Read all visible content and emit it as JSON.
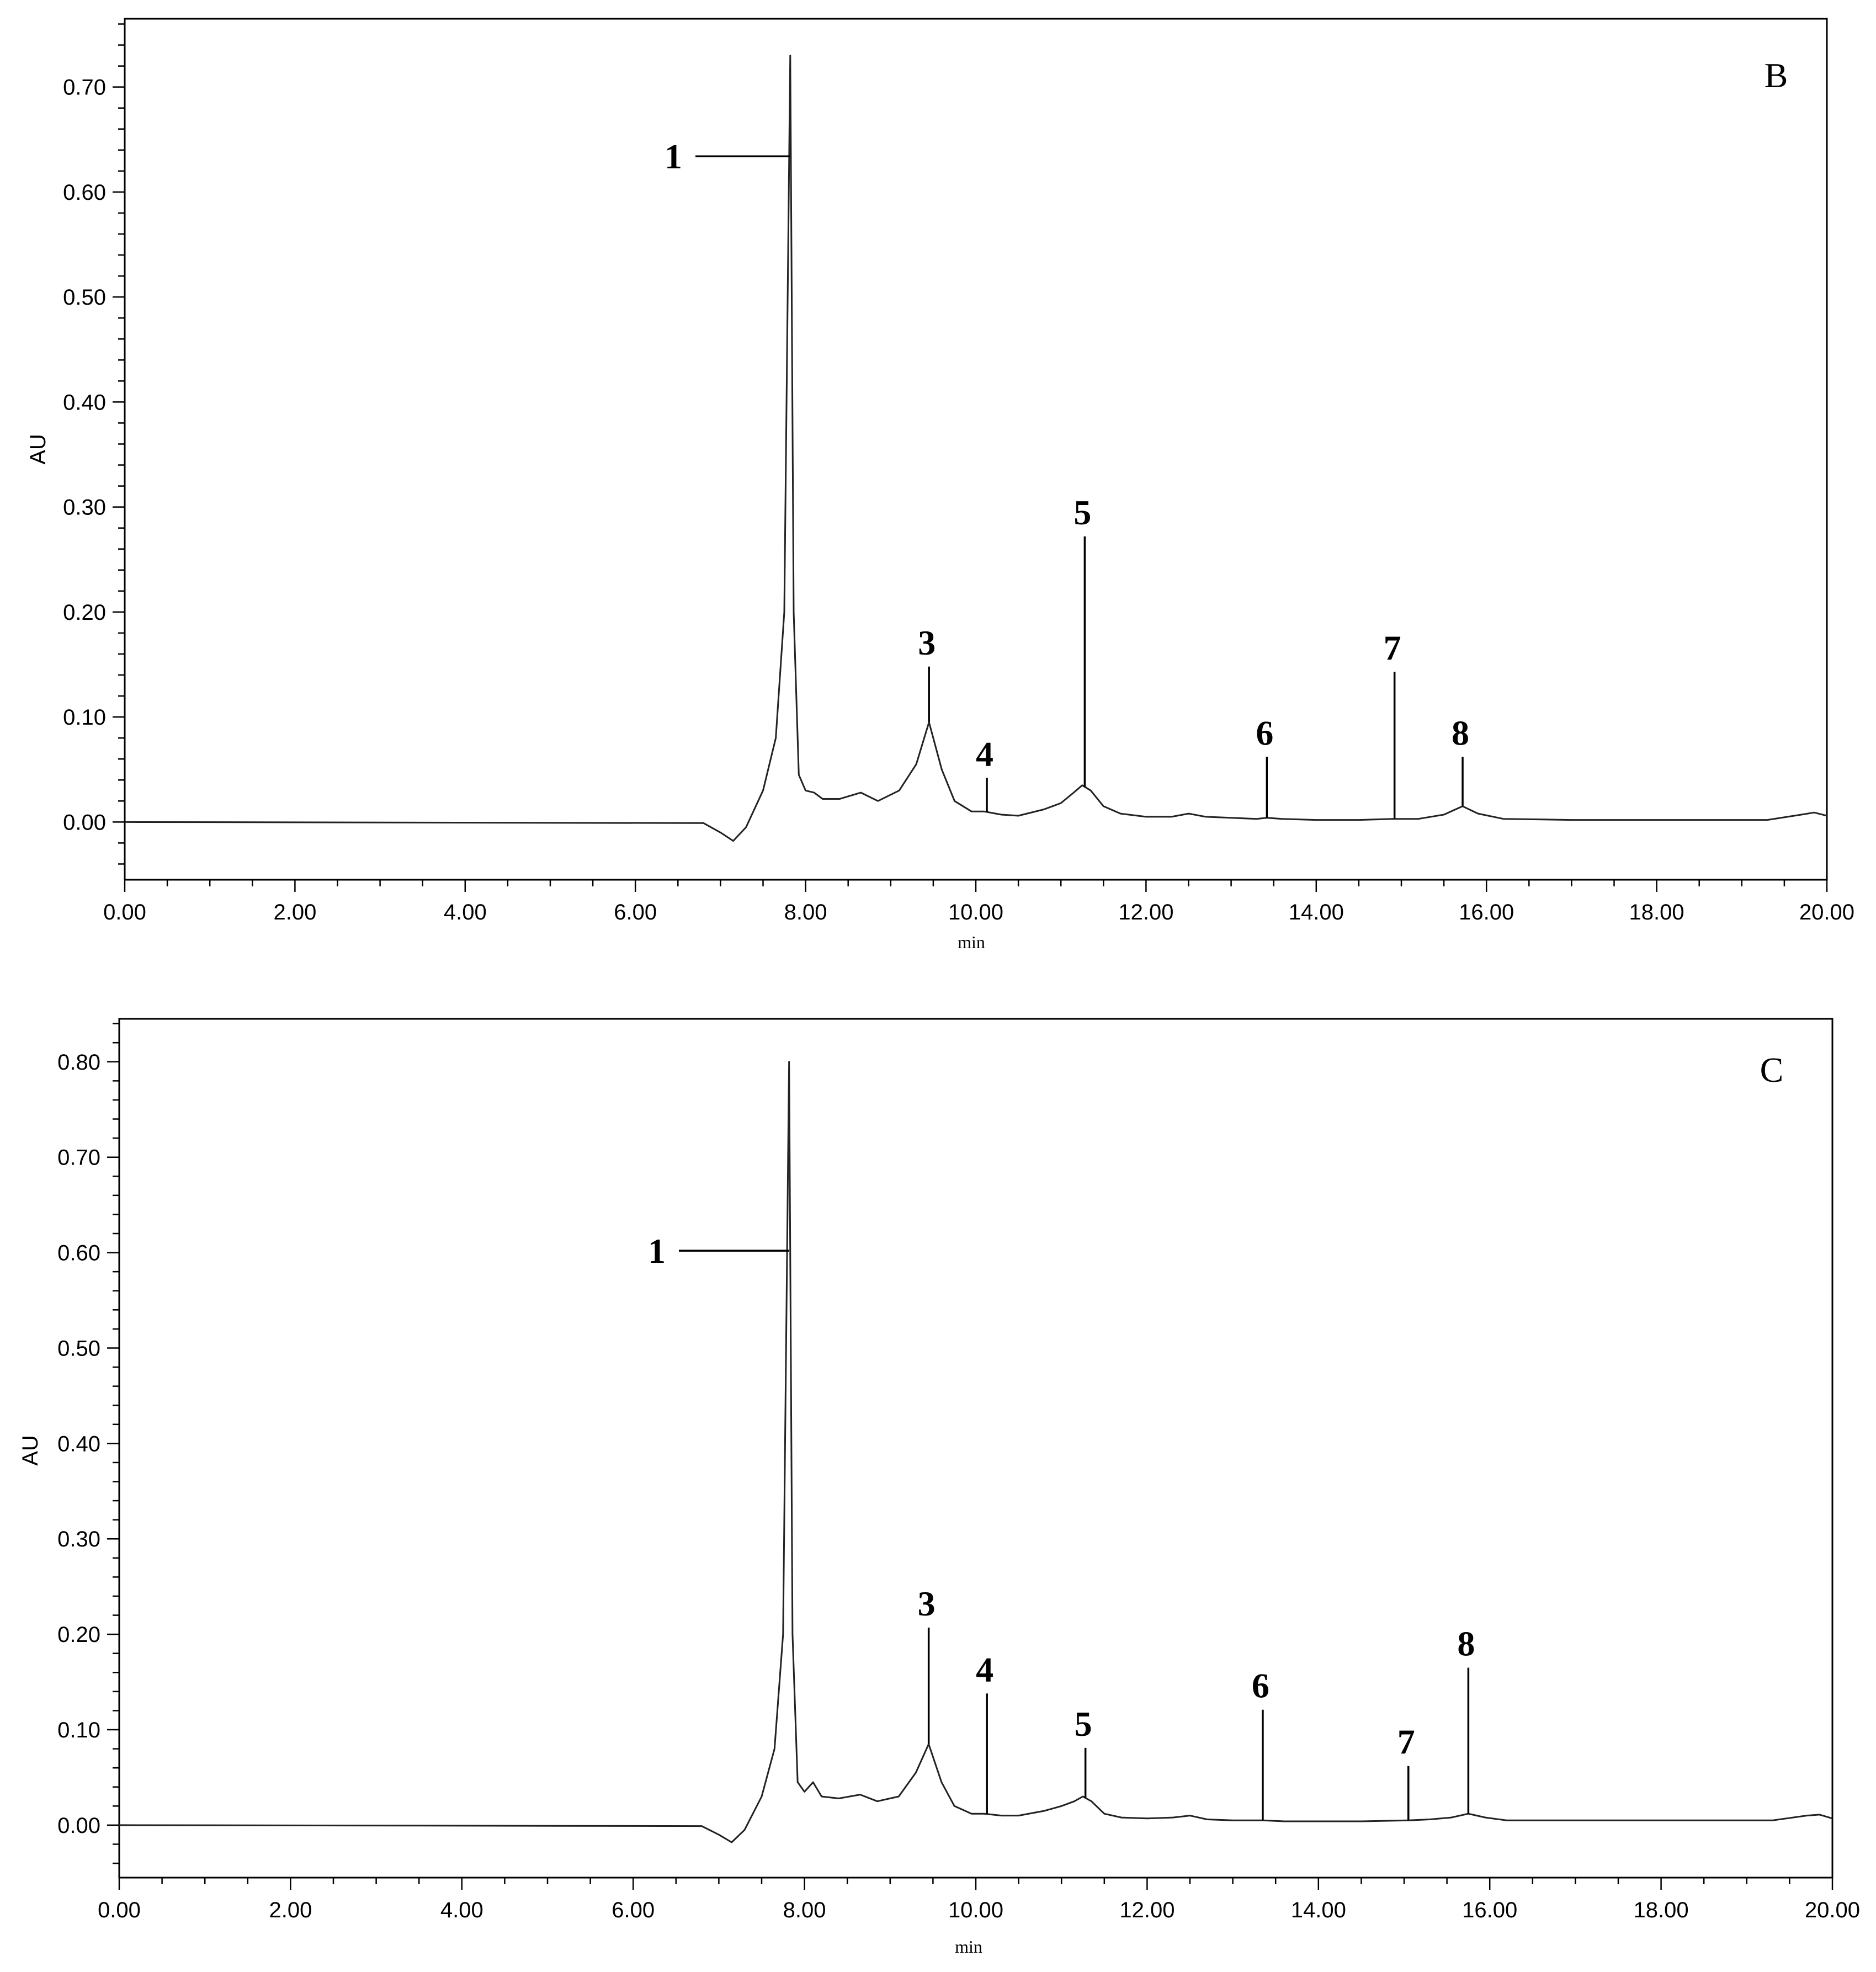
{
  "chart_data": [
    {
      "type": "line",
      "panel": "B",
      "xlabel": "min",
      "ylabel": "AU",
      "xlim": [
        0,
        20
      ],
      "ylim": [
        -0.055,
        0.765
      ],
      "x_ticks": [
        0,
        2,
        4,
        6,
        8,
        10,
        12,
        14,
        16,
        18,
        20
      ],
      "x_tick_labels": [
        "0.00",
        "2.00",
        "4.00",
        "6.00",
        "8.00",
        "10.00",
        "12.00",
        "14.00",
        "16.00",
        "18.00",
        "20.00"
      ],
      "y_ticks": [
        0,
        0.1,
        0.2,
        0.3,
        0.4,
        0.5,
        0.6,
        0.7
      ],
      "y_tick_labels": [
        "0.00",
        "0.10",
        "0.20",
        "0.30",
        "0.40",
        "0.50",
        "0.60",
        "0.70"
      ],
      "series": [
        {
          "x": [
            0,
            6.8,
            7.0,
            7.15,
            7.3,
            7.5,
            7.65,
            7.75,
            7.82,
            7.86,
            7.92,
            8.0,
            8.1,
            8.2,
            8.4,
            8.65,
            8.85,
            9.1,
            9.3,
            9.45,
            9.6,
            9.75,
            9.95,
            10.1,
            10.3,
            10.5,
            10.8,
            11.0,
            11.15,
            11.25,
            11.35,
            11.5,
            11.7,
            12.0,
            12.3,
            12.5,
            12.7,
            13.0,
            13.3,
            13.42,
            13.6,
            14.0,
            14.5,
            14.9,
            15.2,
            15.5,
            15.72,
            15.9,
            16.2,
            17,
            18,
            19.3,
            19.7,
            19.85,
            20
          ],
          "y": [
            0,
            -0.001,
            -0.01,
            -0.018,
            -0.005,
            0.03,
            0.08,
            0.2,
            0.73,
            0.2,
            0.045,
            0.03,
            0.028,
            0.022,
            0.022,
            0.028,
            0.02,
            0.03,
            0.055,
            0.095,
            0.05,
            0.02,
            0.01,
            0.01,
            0.007,
            0.006,
            0.012,
            0.018,
            0.028,
            0.035,
            0.03,
            0.015,
            0.008,
            0.005,
            0.005,
            0.008,
            0.005,
            0.004,
            0.003,
            0.004,
            0.003,
            0.002,
            0.002,
            0.003,
            0.003,
            0.007,
            0.015,
            0.008,
            0.003,
            0.002,
            0.002,
            0.002,
            0.007,
            0.009,
            0.006
          ]
        }
      ],
      "annotations": [
        {
          "label": "1",
          "x": 7.82
        },
        {
          "label": "3",
          "x": 9.45
        },
        {
          "label": "4",
          "x": 10.13
        },
        {
          "label": "5",
          "x": 11.28
        },
        {
          "label": "6",
          "x": 13.42
        },
        {
          "label": "7",
          "x": 14.92
        },
        {
          "label": "8",
          "x": 15.72
        }
      ]
    },
    {
      "type": "line",
      "panel": "C",
      "xlabel": "min",
      "ylabel": "AU",
      "xlim": [
        0,
        20
      ],
      "ylim": [
        -0.055,
        0.845
      ],
      "x_ticks": [
        0,
        2,
        4,
        6,
        8,
        10,
        12,
        14,
        16,
        18,
        20
      ],
      "x_tick_labels": [
        "0.00",
        "2.00",
        "4.00",
        "6.00",
        "8.00",
        "10.00",
        "12.00",
        "14.00",
        "16.00",
        "18.00",
        "20.00"
      ],
      "y_ticks": [
        0,
        0.1,
        0.2,
        0.3,
        0.4,
        0.5,
        0.6,
        0.7,
        0.8
      ],
      "y_tick_labels": [
        "0.00",
        "0.10",
        "0.20",
        "0.30",
        "0.40",
        "0.50",
        "0.60",
        "0.70",
        "0.80"
      ],
      "series": [
        {
          "x": [
            0,
            6.8,
            7.0,
            7.15,
            7.3,
            7.5,
            7.65,
            7.75,
            7.82,
            7.86,
            7.92,
            8.0,
            8.1,
            8.2,
            8.4,
            8.65,
            8.85,
            9.1,
            9.3,
            9.45,
            9.6,
            9.75,
            9.95,
            10.1,
            10.3,
            10.5,
            10.8,
            11.0,
            11.15,
            11.25,
            11.35,
            11.5,
            11.7,
            12.0,
            12.3,
            12.5,
            12.7,
            13.0,
            13.35,
            13.6,
            14.0,
            14.5,
            15.05,
            15.3,
            15.55,
            15.75,
            15.95,
            16.2,
            17,
            18,
            19.3,
            19.7,
            19.85,
            20
          ],
          "y": [
            0,
            -0.001,
            -0.01,
            -0.018,
            -0.005,
            0.03,
            0.08,
            0.2,
            0.8,
            0.2,
            0.045,
            0.035,
            0.045,
            0.03,
            0.028,
            0.032,
            0.025,
            0.03,
            0.055,
            0.085,
            0.045,
            0.02,
            0.012,
            0.012,
            0.01,
            0.01,
            0.015,
            0.02,
            0.025,
            0.03,
            0.025,
            0.012,
            0.008,
            0.007,
            0.008,
            0.01,
            0.006,
            0.005,
            0.005,
            0.004,
            0.004,
            0.004,
            0.005,
            0.006,
            0.008,
            0.012,
            0.008,
            0.005,
            0.005,
            0.005,
            0.005,
            0.01,
            0.011,
            0.007
          ]
        }
      ],
      "annotations": [
        {
          "label": "1",
          "x": 7.82
        },
        {
          "label": "3",
          "x": 9.45
        },
        {
          "label": "4",
          "x": 10.13
        },
        {
          "label": "5",
          "x": 11.28
        },
        {
          "label": "6",
          "x": 13.35
        },
        {
          "label": "7",
          "x": 15.05
        },
        {
          "label": "8",
          "x": 15.75
        }
      ]
    }
  ]
}
